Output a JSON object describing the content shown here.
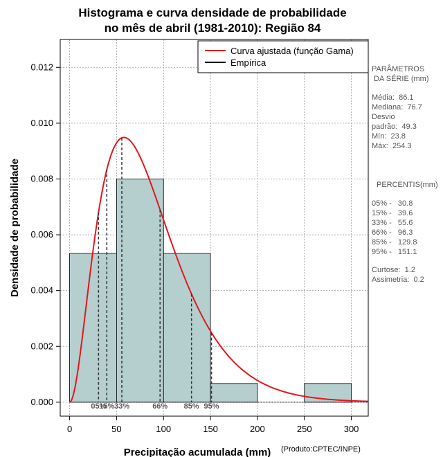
{
  "chart_data": {
    "type": "bar",
    "title_line1": "Histograma e curva densidade de probabilidade",
    "title_line2": "no mês de abril (1981-2010): Região 84",
    "xlabel": "Precipitação acumulada (mm)",
    "ylabel": "Densidade de probabilidade",
    "credit": "(Produto:CPTEC/INPE)",
    "xlim": [
      -10,
      318
    ],
    "ylim": [
      -0.0005,
      0.013
    ],
    "x_ticks": [
      0,
      50,
      100,
      150,
      200,
      250,
      300
    ],
    "x_tick_labels": [
      "0",
      "50",
      "100",
      "150",
      "200",
      "250",
      "300"
    ],
    "y_ticks": [
      0.0,
      0.002,
      0.004,
      0.006,
      0.008,
      0.01,
      0.012
    ],
    "y_tick_labels": [
      "0.000",
      "0.002",
      "0.004",
      "0.006",
      "0.008",
      "0.010",
      "0.012"
    ],
    "grid": true,
    "legend_position": "top-right",
    "histogram": [
      {
        "x0": 0,
        "x1": 50,
        "density": 0.00533
      },
      {
        "x0": 50,
        "x1": 100,
        "density": 0.008
      },
      {
        "x0": 100,
        "x1": 150,
        "density": 0.00533
      },
      {
        "x0": 150,
        "x1": 200,
        "density": 0.00067
      },
      {
        "x0": 200,
        "x1": 250,
        "density": 0.0
      },
      {
        "x0": 250,
        "x1": 300,
        "density": 0.00067
      }
    ],
    "series": [
      {
        "name": "Curva ajustada (função Gama)",
        "color": "#e8141b",
        "gamma_shape": 3.05,
        "gamma_scale": 28.2
      },
      {
        "name": "Empírica",
        "color": "#000000"
      }
    ],
    "bar_fill": "#b5cfcf",
    "percentile_markers": [
      {
        "x": 30.8,
        "label": "05%"
      },
      {
        "x": 39.6,
        "label": "15%"
      },
      {
        "x": 55.6,
        "label": "33%"
      },
      {
        "x": 96.3,
        "label": "66%"
      },
      {
        "x": 129.8,
        "label": "85%"
      },
      {
        "x": 151.1,
        "label": "95%"
      }
    ]
  },
  "side_panel": {
    "params_heading_1": "PARÂMETROS",
    "params_heading_2": " DA SÉRIE (mm)",
    "media": "Média:  86.1",
    "mediana": "Mediana:  76.7",
    "desvio_1": "Desvio",
    "desvio_2": "padrão:  49.3",
    "min": "Mín:  23.8",
    "max": "Máx:  254.3",
    "percentis_heading": "PERCENTIS(mm)",
    "p05": "05% -   30.8",
    "p15": "15% -   39.6",
    "p33": "33% -   55.6",
    "p66": "66% -   96.3",
    "p85": "85% -   129.8",
    "p95": "95% -   151.1",
    "curtose": "Curtose:  1.2",
    "assimetria": "Assimetria:  0.2"
  }
}
